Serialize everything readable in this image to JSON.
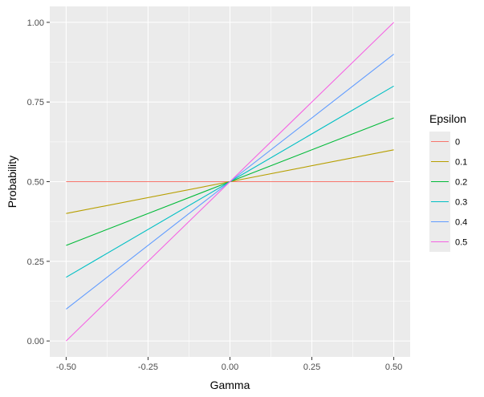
{
  "chart_data": {
    "type": "line",
    "xlabel": "Gamma",
    "ylabel": "Probability",
    "xlim": [
      -0.55,
      0.55
    ],
    "ylim": [
      -0.05,
      1.05
    ],
    "x_ticks": [
      -0.5,
      -0.25,
      0.0,
      0.25,
      0.5
    ],
    "x_tick_labels": [
      "-0.50",
      "-0.25",
      "0.00",
      "0.25",
      "0.50"
    ],
    "y_ticks": [
      0.0,
      0.25,
      0.5,
      0.75,
      1.0
    ],
    "y_tick_labels": [
      "0.00",
      "0.25",
      "0.50",
      "0.75",
      "1.00"
    ],
    "grid": true,
    "legend": {
      "title": "Epsilon",
      "position": "right"
    },
    "x": [
      -0.5,
      0.0,
      0.5
    ],
    "series": [
      {
        "name": "0",
        "color": "#F8766D",
        "values": [
          0.5,
          0.5,
          0.5
        ]
      },
      {
        "name": "0.1",
        "color": "#B79F00",
        "values": [
          0.4,
          0.5,
          0.6
        ]
      },
      {
        "name": "0.2",
        "color": "#00BA38",
        "values": [
          0.3,
          0.5,
          0.7
        ]
      },
      {
        "name": "0.3",
        "color": "#00BFC4",
        "values": [
          0.2,
          0.5,
          0.8
        ]
      },
      {
        "name": "0.4",
        "color": "#619CFF",
        "values": [
          0.1,
          0.5,
          0.9
        ]
      },
      {
        "name": "0.5",
        "color": "#F564E3",
        "values": [
          0.0,
          0.5,
          1.0
        ]
      }
    ],
    "panel_background": "#EBEBEB",
    "grid_color": "#FFFFFF"
  }
}
